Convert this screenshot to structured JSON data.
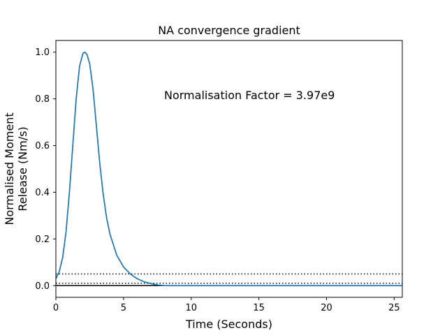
{
  "chart_data": {
    "type": "line",
    "title": "NA convergence gradient",
    "xlabel": "Time (Seconds)",
    "ylabel_lines": [
      "Normalised Moment",
      "Release (Nm/s)"
    ],
    "xlim": [
      0,
      25.6
    ],
    "ylim": [
      -0.05,
      1.05
    ],
    "xticks": [
      0,
      5,
      10,
      15,
      20,
      25
    ],
    "xtick_labels": [
      "0",
      "5",
      "10",
      "15",
      "20",
      "25"
    ],
    "yticks": [
      0.0,
      0.2,
      0.4,
      0.6,
      0.8,
      1.0
    ],
    "ytick_labels": [
      "0.0",
      "0.2",
      "0.4",
      "0.6",
      "0.8",
      "1.0"
    ],
    "grid": false,
    "annotation": "Normalisation Factor = 3.97e9",
    "series": [
      {
        "color": "#1f77b4",
        "x": [
          0,
          0.25,
          0.5,
          0.75,
          1.0,
          1.25,
          1.5,
          1.75,
          2.0,
          2.15,
          2.3,
          2.5,
          2.75,
          3.0,
          3.25,
          3.5,
          3.75,
          4.0,
          4.5,
          5.0,
          5.5,
          6.0,
          6.5,
          7.0,
          7.5,
          8.0,
          9.0,
          10.0,
          12.0,
          15.0,
          20.0,
          25.6
        ],
        "y": [
          0.03,
          0.06,
          0.12,
          0.23,
          0.4,
          0.6,
          0.8,
          0.94,
          0.995,
          1.0,
          0.99,
          0.95,
          0.84,
          0.68,
          0.52,
          0.39,
          0.29,
          0.22,
          0.13,
          0.08,
          0.05,
          0.03,
          0.017,
          0.009,
          0.003,
          0.0,
          0.0,
          0.0,
          0.0,
          0.0,
          0.0,
          0.0
        ]
      }
    ],
    "reference_lines": [
      {
        "y": 0.05,
        "style": "dotted",
        "color": "#000000"
      },
      {
        "y": 0.01,
        "style": "dotted",
        "color": "#000000"
      },
      {
        "y": 0.0,
        "style": "solid",
        "color": "#000000"
      }
    ]
  }
}
